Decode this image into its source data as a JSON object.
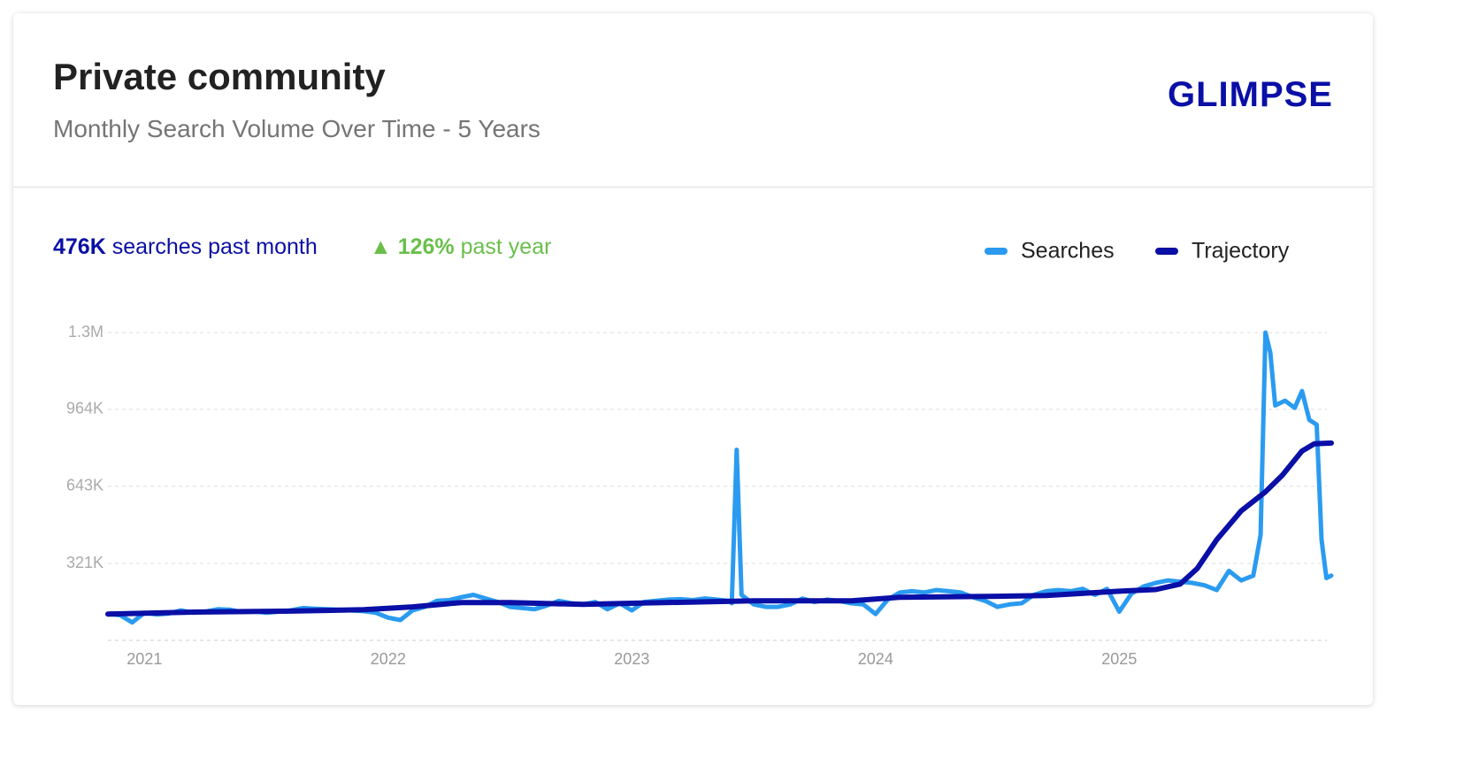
{
  "header": {
    "title": "Private community",
    "subtitle": "Monthly Search Volume Over Time - 5 Years",
    "logo": "GLIMPSE"
  },
  "stats": {
    "volume": "476K",
    "volume_text": "searches past month",
    "growth": "126%",
    "growth_text": "past year"
  },
  "chart_data": {
    "type": "line",
    "series": [
      {
        "name": "Searches",
        "color": "#2a9bf0",
        "x": [
          2020.85,
          2020.9,
          2020.95,
          2021.0,
          2021.05,
          2021.1,
          2021.15,
          2021.2,
          2021.25,
          2021.3,
          2021.35,
          2021.4,
          2021.45,
          2021.5,
          2021.55,
          2021.6,
          2021.65,
          2021.7,
          2021.75,
          2021.8,
          2021.85,
          2021.9,
          2021.95,
          2022.0,
          2022.05,
          2022.1,
          2022.15,
          2022.2,
          2022.25,
          2022.3,
          2022.35,
          2022.4,
          2022.45,
          2022.5,
          2022.55,
          2022.6,
          2022.65,
          2022.7,
          2022.75,
          2022.8,
          2022.85,
          2022.9,
          2022.95,
          2023.0,
          2023.05,
          2023.1,
          2023.15,
          2023.2,
          2023.25,
          2023.3,
          2023.35,
          2023.4,
          2023.41,
          2023.43,
          2023.45,
          2023.5,
          2023.55,
          2023.6,
          2023.65,
          2023.7,
          2023.75,
          2023.8,
          2023.85,
          2023.9,
          2023.95,
          2024.0,
          2024.05,
          2024.1,
          2024.15,
          2024.2,
          2024.25,
          2024.3,
          2024.35,
          2024.4,
          2024.45,
          2024.5,
          2024.55,
          2024.6,
          2024.65,
          2024.7,
          2024.75,
          2024.8,
          2024.85,
          2024.9,
          2024.95,
          2025.0,
          2025.05,
          2025.1,
          2025.15,
          2025.2,
          2025.25,
          2025.3,
          2025.35,
          2025.4,
          2025.45,
          2025.5,
          2025.55,
          2025.58,
          2025.6,
          2025.62,
          2025.64,
          2025.68,
          2025.72,
          2025.75,
          2025.78,
          2025.81,
          2025.83,
          2025.85,
          2025.87
        ],
        "values": [
          110000,
          105000,
          75000,
          115000,
          108000,
          112000,
          125000,
          115000,
          120000,
          130000,
          128000,
          118000,
          122000,
          115000,
          120000,
          125000,
          135000,
          132000,
          130000,
          128000,
          125000,
          122000,
          115000,
          95000,
          85000,
          125000,
          140000,
          165000,
          168000,
          180000,
          190000,
          175000,
          160000,
          140000,
          135000,
          130000,
          145000,
          165000,
          155000,
          150000,
          160000,
          130000,
          155000,
          125000,
          160000,
          165000,
          170000,
          172000,
          168000,
          175000,
          170000,
          165000,
          155000,
          795000,
          190000,
          150000,
          140000,
          140000,
          150000,
          175000,
          160000,
          170000,
          165000,
          155000,
          150000,
          110000,
          170000,
          200000,
          205000,
          200000,
          210000,
          205000,
          200000,
          180000,
          165000,
          140000,
          150000,
          155000,
          190000,
          205000,
          210000,
          205000,
          215000,
          190000,
          215000,
          120000,
          195000,
          225000,
          240000,
          250000,
          245000,
          240000,
          230000,
          210000,
          290000,
          250000,
          270000,
          440000,
          1284000,
          1200000,
          980000,
          1000000,
          970000,
          1040000,
          920000,
          900000,
          420000,
          260000,
          270000
        ]
      },
      {
        "name": "Trajectory",
        "color": "#0a0fa6",
        "x": [
          2020.85,
          2021.2,
          2021.6,
          2021.9,
          2022.1,
          2022.3,
          2022.5,
          2022.8,
          2023.0,
          2023.5,
          2023.9,
          2024.1,
          2024.5,
          2024.7,
          2025.0,
          2025.15,
          2025.25,
          2025.32,
          2025.4,
          2025.5,
          2025.6,
          2025.67,
          2025.75,
          2025.8,
          2025.87
        ],
        "values": [
          110000,
          118000,
          122000,
          128000,
          140000,
          158000,
          158000,
          150000,
          155000,
          165000,
          165000,
          180000,
          184000,
          187000,
          205000,
          212000,
          235000,
          300000,
          420000,
          540000,
          620000,
          690000,
          790000,
          820000,
          823000
        ]
      }
    ],
    "xlim": [
      2020.85,
      2025.87
    ],
    "xticks": [
      2021,
      2022,
      2023,
      2024,
      2025
    ],
    "ylim": [
      0,
      1284000
    ],
    "yticks": [
      {
        "value": 321000,
        "label": "321K"
      },
      {
        "value": 643000,
        "label": "643K"
      },
      {
        "value": 964000,
        "label": "964K"
      },
      {
        "value": 1284000,
        "label": "1.3M"
      }
    ],
    "grid": true,
    "legend": "top-right"
  }
}
